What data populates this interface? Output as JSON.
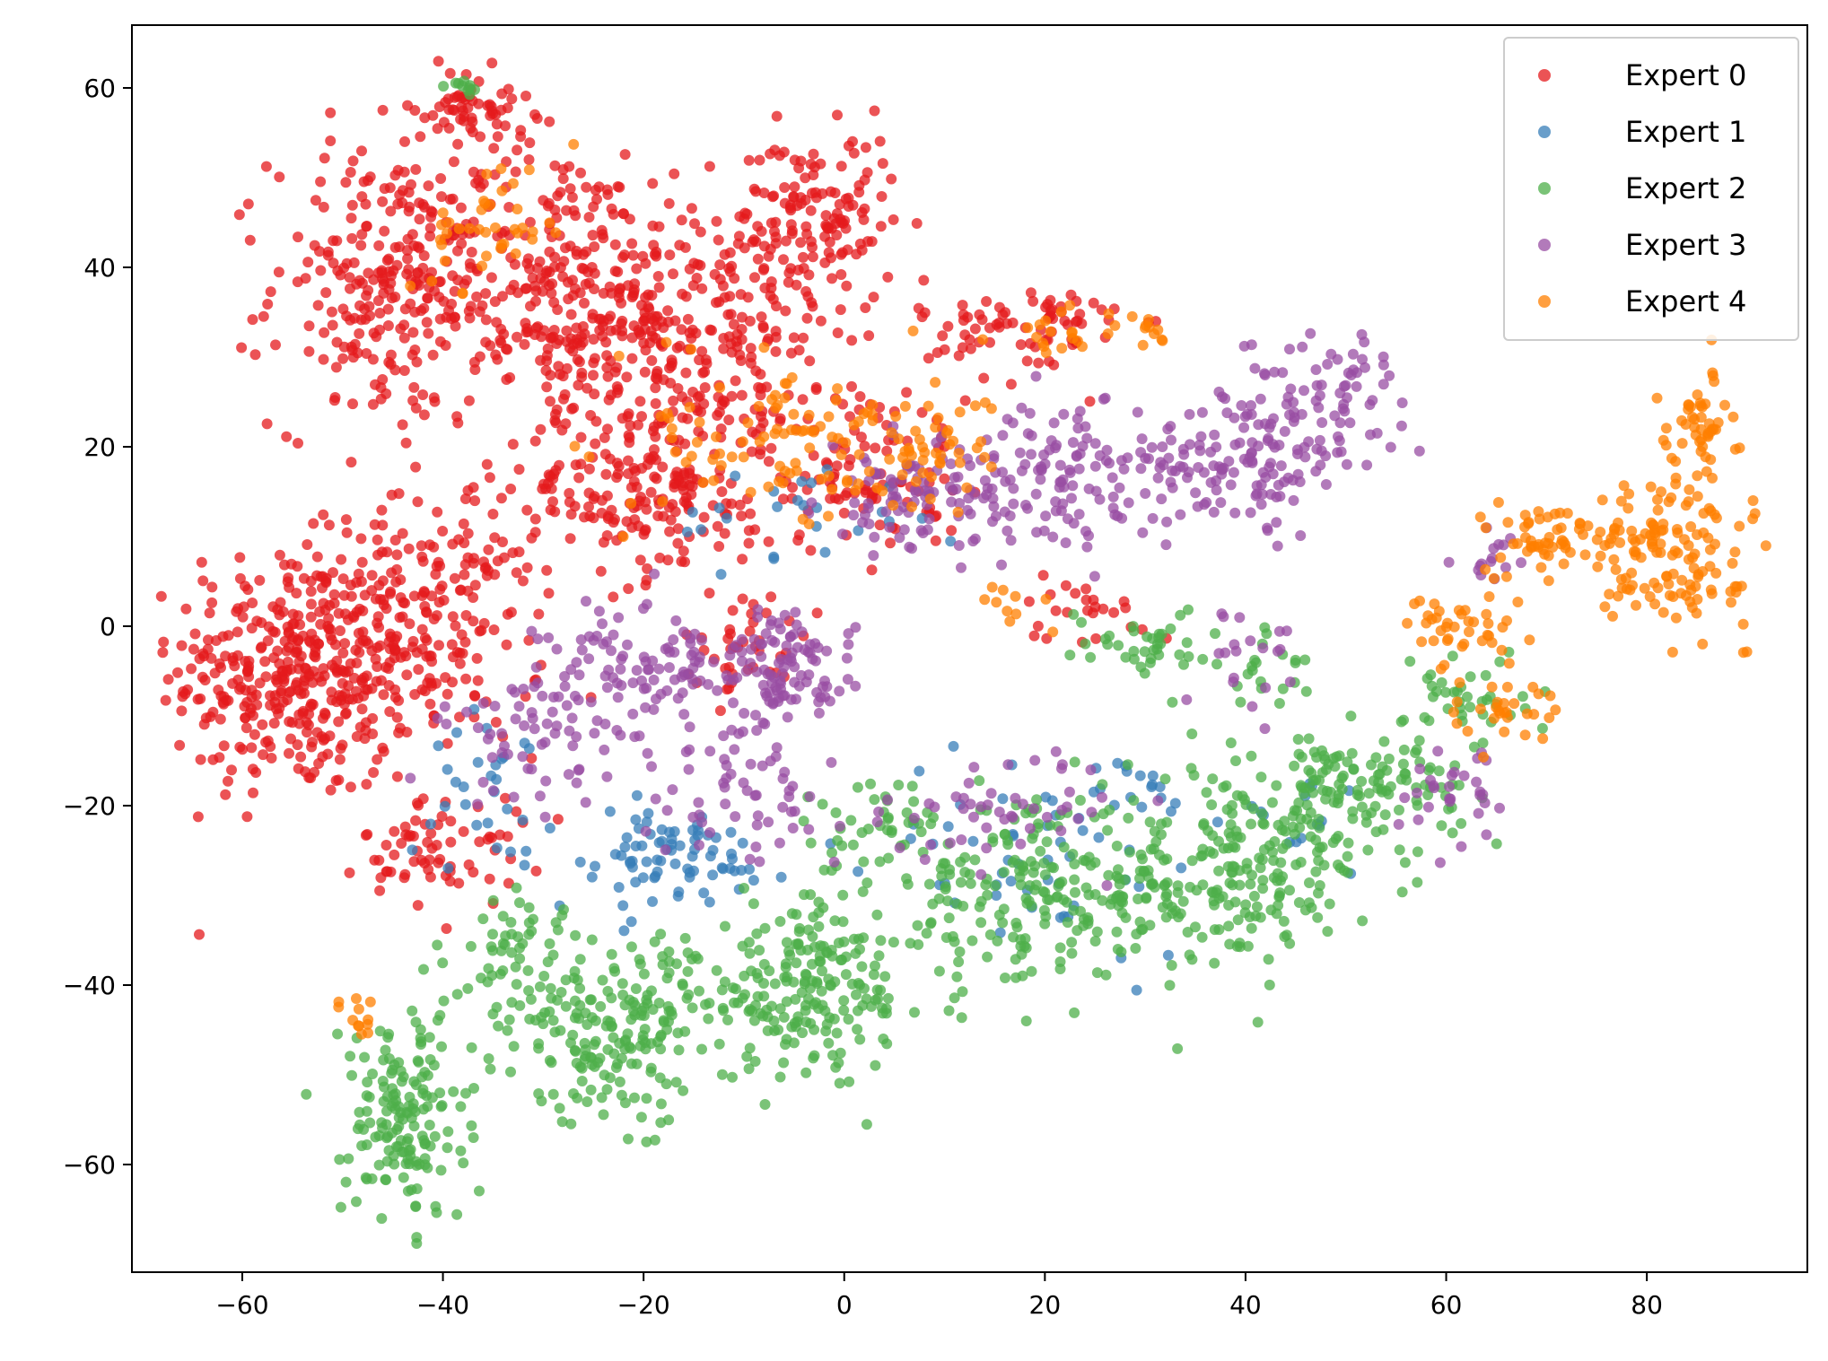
{
  "chart_data": {
    "type": "scatter",
    "title": "",
    "xlabel": "",
    "ylabel": "",
    "xlim": [
      -71,
      96
    ],
    "ylim": [
      -72,
      67
    ],
    "xticks": [
      -60,
      -40,
      -20,
      0,
      20,
      40,
      60,
      80
    ],
    "yticks": [
      -60,
      -40,
      -20,
      0,
      20,
      40,
      60
    ],
    "xtick_labels": [
      "−60",
      "−40",
      "−20",
      "0",
      "20",
      "40",
      "60",
      "80"
    ],
    "ytick_labels": [
      "−60",
      "−40",
      "−20",
      "0",
      "20",
      "40",
      "60"
    ],
    "grid": false,
    "legend_position": "top-right",
    "series": [
      {
        "name": "Expert 0",
        "color": "#e41a1c",
        "clusters": [
          {
            "cx": -55,
            "cy": -5,
            "sx": 6,
            "sy": 7,
            "n": 360
          },
          {
            "cx": -42,
            "cy": 0,
            "sx": 6,
            "sy": 7,
            "n": 220
          },
          {
            "cx": -45,
            "cy": 38,
            "sx": 6,
            "sy": 8,
            "n": 260
          },
          {
            "cx": -28,
            "cy": 38,
            "sx": 7,
            "sy": 8,
            "n": 260
          },
          {
            "cx": -15,
            "cy": 32,
            "sx": 7,
            "sy": 8,
            "n": 260
          },
          {
            "cx": -20,
            "cy": 15,
            "sx": 7,
            "sy": 5,
            "n": 180
          },
          {
            "cx": -3,
            "cy": 45,
            "sx": 4,
            "sy": 5,
            "n": 140
          },
          {
            "cx": -37,
            "cy": 58,
            "sx": 3,
            "sy": 2,
            "n": 60
          },
          {
            "cx": 2,
            "cy": 18,
            "sx": 5,
            "sy": 5,
            "n": 100
          },
          {
            "cx": 18,
            "cy": 33,
            "sx": 5,
            "sy": 3,
            "n": 80
          },
          {
            "cx": -40,
            "cy": -25,
            "sx": 4,
            "sy": 3,
            "n": 70
          },
          {
            "cx": -10,
            "cy": -2,
            "sx": 3,
            "sy": 3,
            "n": 40
          },
          {
            "cx": 25,
            "cy": 2,
            "sx": 4,
            "sy": 2,
            "n": 25
          }
        ]
      },
      {
        "name": "Expert 1",
        "color": "#377eb8",
        "clusters": [
          {
            "cx": -18,
            "cy": -26,
            "sx": 6,
            "sy": 3,
            "n": 80
          },
          {
            "cx": -35,
            "cy": -18,
            "sx": 3,
            "sy": 4,
            "n": 30
          },
          {
            "cx": 20,
            "cy": -25,
            "sx": 8,
            "sy": 6,
            "n": 50
          },
          {
            "cx": -5,
            "cy": 12,
            "sx": 6,
            "sy": 3,
            "n": 25
          },
          {
            "cx": 45,
            "cy": -22,
            "sx": 5,
            "sy": 3,
            "n": 15
          },
          {
            "cx": 30,
            "cy": -18,
            "sx": 3,
            "sy": 2,
            "n": 15
          }
        ]
      },
      {
        "name": "Expert 2",
        "color": "#4daf4a",
        "clusters": [
          {
            "cx": -44,
            "cy": -55,
            "sx": 3,
            "sy": 6,
            "n": 160
          },
          {
            "cx": -22,
            "cy": -45,
            "sx": 6,
            "sy": 5,
            "n": 200
          },
          {
            "cx": -3,
            "cy": -40,
            "sx": 6,
            "sy": 5,
            "n": 200
          },
          {
            "cx": 20,
            "cy": -30,
            "sx": 8,
            "sy": 5,
            "n": 220
          },
          {
            "cx": 40,
            "cy": -27,
            "sx": 6,
            "sy": 5,
            "n": 200
          },
          {
            "cx": 52,
            "cy": -18,
            "sx": 5,
            "sy": 3,
            "n": 120
          },
          {
            "cx": -33,
            "cy": -37,
            "sx": 3,
            "sy": 4,
            "n": 60
          },
          {
            "cx": 30,
            "cy": -2,
            "sx": 4,
            "sy": 2,
            "n": 40
          },
          {
            "cx": 62,
            "cy": -8,
            "sx": 3,
            "sy": 3,
            "n": 40
          },
          {
            "cx": 5,
            "cy": -22,
            "sx": 4,
            "sy": 3,
            "n": 40
          },
          {
            "cx": 42,
            "cy": -5,
            "sx": 2,
            "sy": 2,
            "n": 20
          },
          {
            "cx": -38,
            "cy": 60,
            "sx": 0.8,
            "sy": 0.8,
            "n": 10
          }
        ]
      },
      {
        "name": "Expert 3",
        "color": "#984ea3",
        "clusters": [
          {
            "cx": -18,
            "cy": -5,
            "sx": 6,
            "sy": 4,
            "n": 120
          },
          {
            "cx": -5,
            "cy": -5,
            "sx": 3,
            "sy": 3,
            "n": 80
          },
          {
            "cx": -30,
            "cy": -12,
            "sx": 5,
            "sy": 4,
            "n": 60
          },
          {
            "cx": 8,
            "cy": 14,
            "sx": 5,
            "sy": 3,
            "n": 100
          },
          {
            "cx": 22,
            "cy": 17,
            "sx": 5,
            "sy": 4,
            "n": 100
          },
          {
            "cx": 40,
            "cy": 18,
            "sx": 6,
            "sy": 4,
            "n": 140
          },
          {
            "cx": 48,
            "cy": 27,
            "sx": 4,
            "sy": 3,
            "n": 60
          },
          {
            "cx": -10,
            "cy": -18,
            "sx": 5,
            "sy": 4,
            "n": 60
          },
          {
            "cx": 15,
            "cy": -20,
            "sx": 7,
            "sy": 3,
            "n": 50
          },
          {
            "cx": 62,
            "cy": -18,
            "sx": 3,
            "sy": 3,
            "n": 30
          },
          {
            "cx": 65,
            "cy": 8,
            "sx": 2,
            "sy": 2,
            "n": 15
          },
          {
            "cx": 40,
            "cy": -3,
            "sx": 3,
            "sy": 3,
            "n": 20
          }
        ]
      },
      {
        "name": "Expert 4",
        "color": "#ff7f00",
        "clusters": [
          {
            "cx": 82,
            "cy": 8,
            "sx": 4,
            "sy": 4,
            "n": 140
          },
          {
            "cx": 85,
            "cy": 22,
            "sx": 2,
            "sy": 3,
            "n": 50
          },
          {
            "cx": 70,
            "cy": 10,
            "sx": 3,
            "sy": 2,
            "n": 50
          },
          {
            "cx": 62,
            "cy": 0,
            "sx": 3,
            "sy": 2,
            "n": 40
          },
          {
            "cx": 64,
            "cy": -9,
            "sx": 3,
            "sy": 2,
            "n": 30
          },
          {
            "cx": -5,
            "cy": 20,
            "sx": 7,
            "sy": 5,
            "n": 100
          },
          {
            "cx": -35,
            "cy": 45,
            "sx": 4,
            "sy": 4,
            "n": 40
          },
          {
            "cx": 9,
            "cy": 20,
            "sx": 3,
            "sy": 3,
            "n": 40
          },
          {
            "cx": 22,
            "cy": 33,
            "sx": 3,
            "sy": 2,
            "n": 20
          },
          {
            "cx": -48,
            "cy": -44,
            "sx": 1,
            "sy": 2,
            "n": 12
          },
          {
            "cx": 18,
            "cy": 2,
            "sx": 2,
            "sy": 2,
            "n": 10
          },
          {
            "cx": 30,
            "cy": 33,
            "sx": 2,
            "sy": 1,
            "n": 10
          }
        ]
      }
    ]
  }
}
